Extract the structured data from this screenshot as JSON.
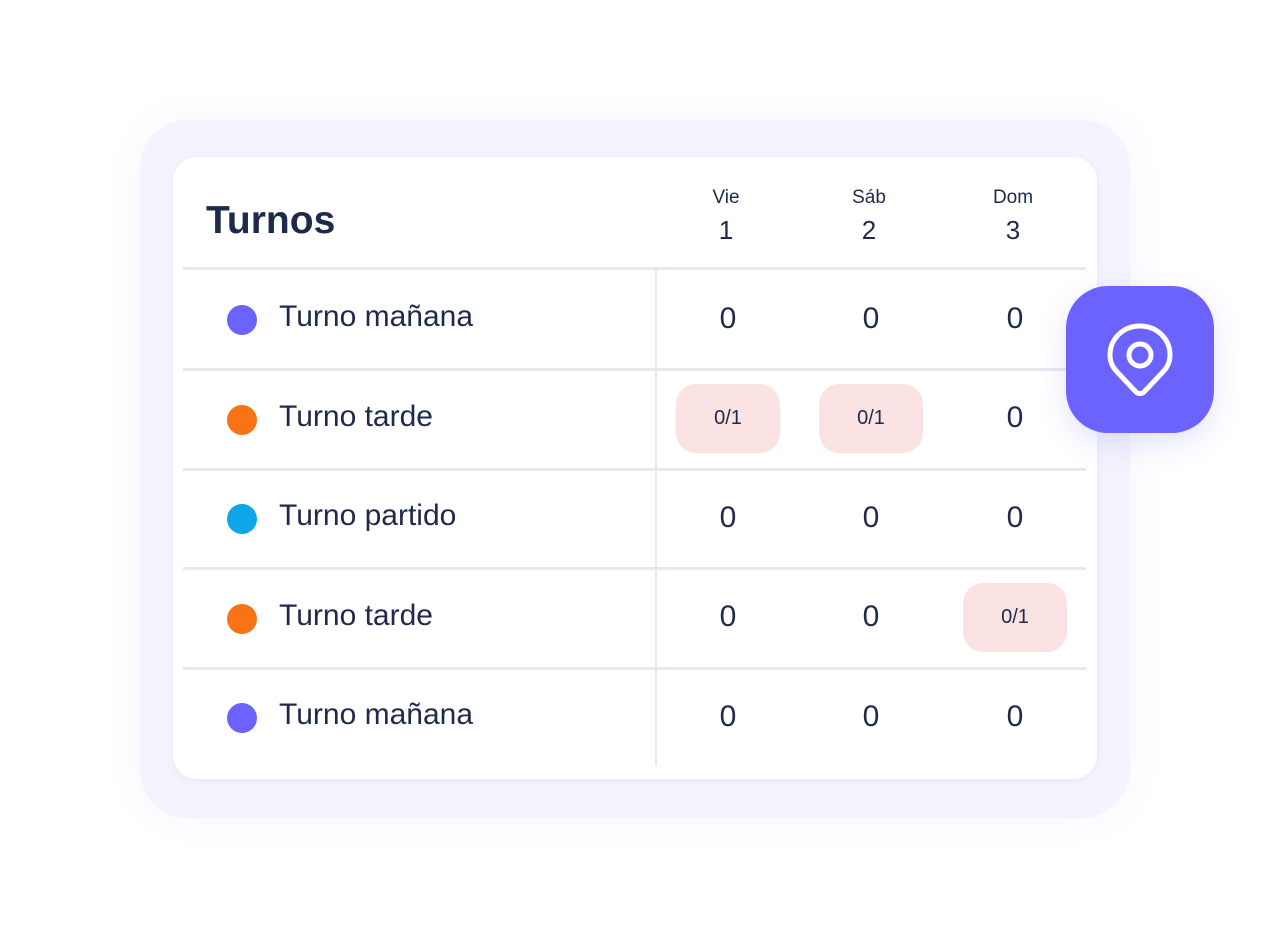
{
  "title": "Turnos",
  "days": [
    {
      "name": "Vie",
      "date": "1"
    },
    {
      "name": "Sáb",
      "date": "2"
    },
    {
      "name": "Dom",
      "date": "3"
    }
  ],
  "rows": [
    {
      "label": "Turno mañana",
      "color": "#6c63ff",
      "cells": [
        "0",
        "0",
        "0"
      ],
      "alert": [
        false,
        false,
        false
      ]
    },
    {
      "label": "Turno tarde",
      "color": "#f97316",
      "cells": [
        "0/1",
        "0/1",
        "0"
      ],
      "alert": [
        true,
        true,
        false
      ]
    },
    {
      "label": "Turno partido",
      "color": "#0ea5e9",
      "cells": [
        "0",
        "0",
        "0"
      ],
      "alert": [
        false,
        false,
        false
      ]
    },
    {
      "label": "Turno tarde",
      "color": "#f97316",
      "cells": [
        "0",
        "0",
        "0/1"
      ],
      "alert": [
        false,
        false,
        true
      ]
    },
    {
      "label": "Turno mañana",
      "color": "#6c63ff",
      "cells": [
        "0",
        "0",
        "0"
      ],
      "alert": [
        false,
        false,
        false
      ]
    }
  ],
  "accent": "#6c63ff",
  "alert_bg": "#fbe3e3",
  "floating_icon": "map-pin-icon"
}
